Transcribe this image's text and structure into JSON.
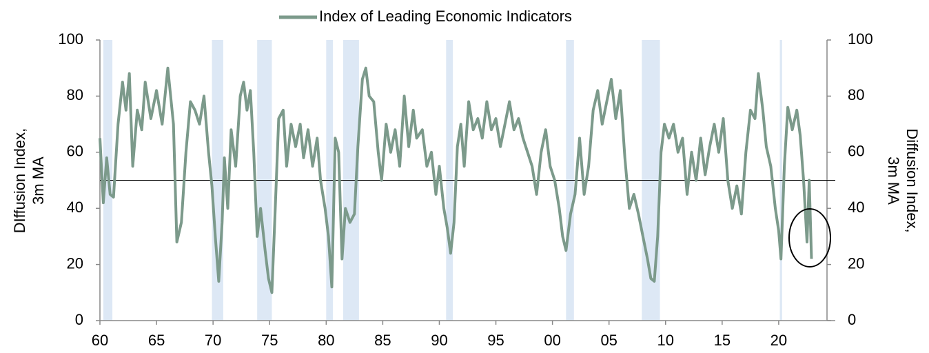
{
  "chart_data": {
    "type": "line",
    "legend_label": "Index of Leading Economic Indicators",
    "ylabel": [
      "DIffusion Index,",
      "3m MA"
    ],
    "y2label": [
      "Diffusion Index,",
      "3m MA"
    ],
    "xlim": [
      1960,
      2025
    ],
    "ylim": [
      0,
      100
    ],
    "yticks": [
      0,
      20,
      40,
      60,
      80,
      100
    ],
    "y2lim": [
      0,
      100
    ],
    "y2ticks": [
      0,
      20,
      40,
      60,
      80,
      100
    ],
    "xticks": [
      {
        "value": 1960,
        "label": "60"
      },
      {
        "value": 1965,
        "label": "65"
      },
      {
        "value": 1970,
        "label": "70"
      },
      {
        "value": 1975,
        "label": "75"
      },
      {
        "value": 1980,
        "label": "80"
      },
      {
        "value": 1985,
        "label": "85"
      },
      {
        "value": 1990,
        "label": "90"
      },
      {
        "value": 1995,
        "label": "95"
      },
      {
        "value": 2000,
        "label": "00"
      },
      {
        "value": 2005,
        "label": "05"
      },
      {
        "value": 2010,
        "label": "10"
      },
      {
        "value": 2015,
        "label": "15"
      },
      {
        "value": 2020,
        "label": "20"
      }
    ],
    "hline": 50,
    "recession_color": "#dde8f5",
    "recessions": [
      [
        1960.3,
        1961.1
      ],
      [
        1969.9,
        1970.9
      ],
      [
        1973.9,
        1975.2
      ],
      [
        1980.0,
        1980.6
      ],
      [
        1981.5,
        1982.9
      ],
      [
        1990.6,
        1991.2
      ],
      [
        2001.2,
        2001.9
      ],
      [
        2007.9,
        2009.5
      ],
      [
        2020.1,
        2020.3
      ]
    ],
    "x": [
      1960.0,
      1960.3,
      1960.6,
      1960.9,
      1961.2,
      1961.6,
      1962.0,
      1962.3,
      1962.6,
      1962.9,
      1963.3,
      1963.7,
      1964.0,
      1964.5,
      1965.0,
      1965.5,
      1966.0,
      1966.5,
      1966.8,
      1967.2,
      1967.6,
      1968.0,
      1968.4,
      1968.8,
      1969.2,
      1969.6,
      1969.9,
      1970.2,
      1970.5,
      1970.8,
      1971.0,
      1971.3,
      1971.6,
      1972.0,
      1972.4,
      1972.7,
      1973.0,
      1973.3,
      1973.6,
      1973.9,
      1974.2,
      1974.6,
      1974.9,
      1975.2,
      1975.5,
      1975.8,
      1976.2,
      1976.5,
      1976.9,
      1977.3,
      1977.7,
      1978.0,
      1978.4,
      1978.8,
      1979.2,
      1979.5,
      1979.9,
      1980.2,
      1980.5,
      1980.8,
      1981.1,
      1981.4,
      1981.7,
      1982.1,
      1982.5,
      1982.8,
      1983.2,
      1983.5,
      1983.8,
      1984.2,
      1984.6,
      1984.9,
      1985.3,
      1985.7,
      1986.1,
      1986.5,
      1986.9,
      1987.3,
      1987.7,
      1988.0,
      1988.5,
      1988.9,
      1989.3,
      1989.7,
      1990.0,
      1990.4,
      1990.7,
      1991.0,
      1991.3,
      1991.6,
      1991.9,
      1992.2,
      1992.6,
      1993.0,
      1993.4,
      1993.8,
      1994.2,
      1994.6,
      1995.0,
      1995.4,
      1995.8,
      1996.2,
      1996.6,
      1997.0,
      1997.4,
      1997.8,
      1998.2,
      1998.6,
      1999.0,
      1999.4,
      1999.8,
      2000.2,
      2000.6,
      2000.9,
      2001.2,
      2001.6,
      2002.0,
      2002.4,
      2002.8,
      2003.2,
      2003.6,
      2004.0,
      2004.4,
      2004.8,
      2005.2,
      2005.6,
      2006.0,
      2006.4,
      2006.8,
      2007.2,
      2007.6,
      2008.0,
      2008.4,
      2008.7,
      2009.0,
      2009.3,
      2009.6,
      2009.9,
      2010.3,
      2010.7,
      2011.1,
      2011.5,
      2011.9,
      2012.3,
      2012.7,
      2013.1,
      2013.5,
      2013.9,
      2014.3,
      2014.7,
      2015.1,
      2015.5,
      2015.9,
      2016.3,
      2016.7,
      2017.1,
      2017.5,
      2017.9,
      2018.2,
      2018.6,
      2018.9,
      2019.3,
      2019.7,
      2020.0,
      2020.2,
      2020.5,
      2020.8,
      2021.2,
      2021.6,
      2021.9,
      2022.2,
      2022.5,
      2022.7,
      2022.9
    ],
    "series": [
      {
        "name": "Index of Leading Economic Indicators",
        "color": "#7c9a8b",
        "values": [
          65,
          42,
          58,
          45,
          44,
          70,
          85,
          75,
          88,
          55,
          75,
          68,
          85,
          72,
          82,
          70,
          90,
          70,
          28,
          35,
          60,
          78,
          75,
          70,
          80,
          60,
          48,
          30,
          14,
          35,
          58,
          40,
          68,
          55,
          80,
          85,
          75,
          82,
          60,
          30,
          40,
          25,
          15,
          10,
          40,
          72,
          75,
          55,
          70,
          62,
          70,
          58,
          68,
          55,
          65,
          50,
          40,
          30,
          12,
          65,
          60,
          22,
          40,
          35,
          38,
          62,
          86,
          90,
          80,
          78,
          60,
          50,
          70,
          60,
          68,
          55,
          80,
          62,
          75,
          65,
          68,
          55,
          60,
          45,
          55,
          40,
          33,
          24,
          35,
          62,
          70,
          55,
          78,
          68,
          72,
          65,
          78,
          68,
          72,
          62,
          70,
          78,
          68,
          72,
          65,
          60,
          55,
          45,
          60,
          68,
          55,
          50,
          40,
          30,
          25,
          38,
          45,
          65,
          45,
          55,
          75,
          82,
          70,
          78,
          86,
          72,
          82,
          58,
          40,
          45,
          38,
          30,
          22,
          15,
          14,
          30,
          60,
          70,
          65,
          70,
          60,
          65,
          45,
          60,
          50,
          65,
          52,
          62,
          70,
          60,
          72,
          50,
          40,
          48,
          38,
          60,
          75,
          72,
          88,
          75,
          62,
          55,
          40,
          32,
          22,
          55,
          76,
          68,
          75,
          66,
          50,
          28,
          50,
          22
        ]
      }
    ]
  }
}
